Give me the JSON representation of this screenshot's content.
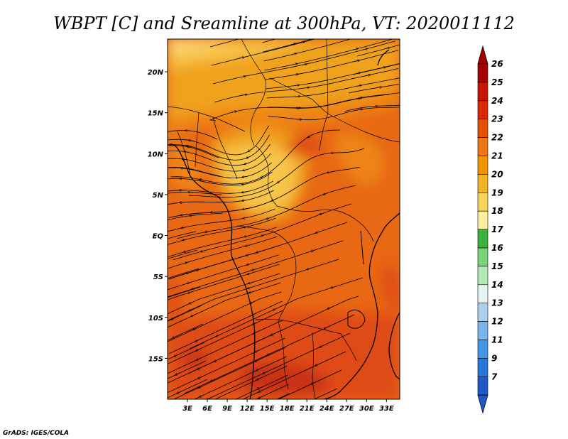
{
  "title": "WBPT [C] and Sreamline at 300hPa, VT: 2020011112",
  "credit": "GrADS: IGES/COLA",
  "map": {
    "lon_range": [
      0,
      35
    ],
    "lat_range": [
      -20,
      24
    ],
    "lon_ticks": [
      "3E",
      "6E",
      "9E",
      "12E",
      "15E",
      "18E",
      "21E",
      "24E",
      "27E",
      "30E",
      "33E"
    ],
    "lat_ticks": [
      "20N",
      "15N",
      "10N",
      "5N",
      "EQ",
      "5S",
      "10S",
      "15S"
    ]
  },
  "colorbar": {
    "levels": [
      "26",
      "25",
      "24",
      "23",
      "22",
      "21",
      "20",
      "19",
      "18",
      "17",
      "16",
      "15",
      "14",
      "13",
      "12",
      "11",
      "9",
      "7"
    ],
    "colors": [
      "#a50000",
      "#c81400",
      "#dc2800",
      "#e65000",
      "#f07814",
      "#f09600",
      "#f0b428",
      "#f5d25a",
      "#fff0a0",
      "#3cb43c",
      "#78d278",
      "#b4eab4",
      "#e6f5f0",
      "#aad2f0",
      "#78b4ee",
      "#4696e6",
      "#2878dc",
      "#1e5ac8"
    ],
    "top_color": "#a50000",
    "bottom_color": "#1e5ac8"
  },
  "field_colors": {
    "w19": "#fce38a",
    "w20": "#f7c54a",
    "w21": "#f0a21c",
    "w22": "#ee8418",
    "w23": "#e86814",
    "w24": "#df4c14",
    "w25": "#c83018"
  }
}
